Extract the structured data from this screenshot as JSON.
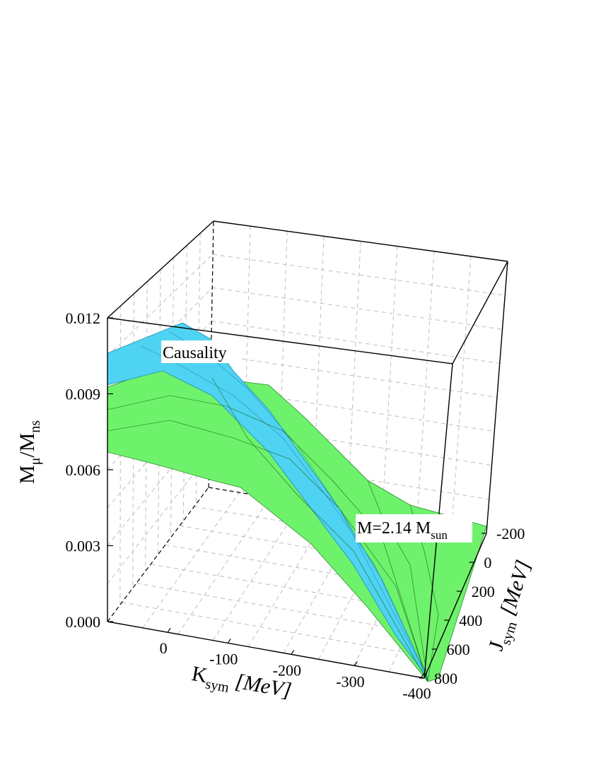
{
  "chart_data": {
    "type": "surface3d",
    "zlabel": "M_μ/M_ns",
    "zlabel_main": "M",
    "zlabel_sub": "μ",
    "zlabel_slash": "/M",
    "zlabel_sub2": "ns",
    "xlabel_main": "K",
    "xlabel_sub": "sym",
    "xlabel_unit": " [MeV]",
    "ylabel_main": "J",
    "ylabel_sub": "sym",
    "ylabel_unit": " [MeV]",
    "z_ticks": [
      "0.000",
      "0.003",
      "0.006",
      "0.009",
      "0.012"
    ],
    "x_ticks": [
      "0",
      "-100",
      "-200",
      "-300",
      "-400"
    ],
    "y_ticks": [
      "-200",
      "0",
      "200",
      "400",
      "600",
      "800"
    ],
    "zlim": [
      0,
      0.012
    ],
    "grid": true,
    "annotations": {
      "causality": "Causality",
      "mass_main": "M=2.14 M",
      "mass_sub": "sun"
    },
    "series": [
      {
        "name": "Causality",
        "color": "#4fd3f2",
        "edge_values": [
          0.0104,
          0.0112,
          0.0
        ]
      },
      {
        "name": "M=2.14 M_sun",
        "color": "#6ef26b",
        "edge_values": [
          0.0091,
          0.004,
          0.0
        ]
      }
    ]
  }
}
